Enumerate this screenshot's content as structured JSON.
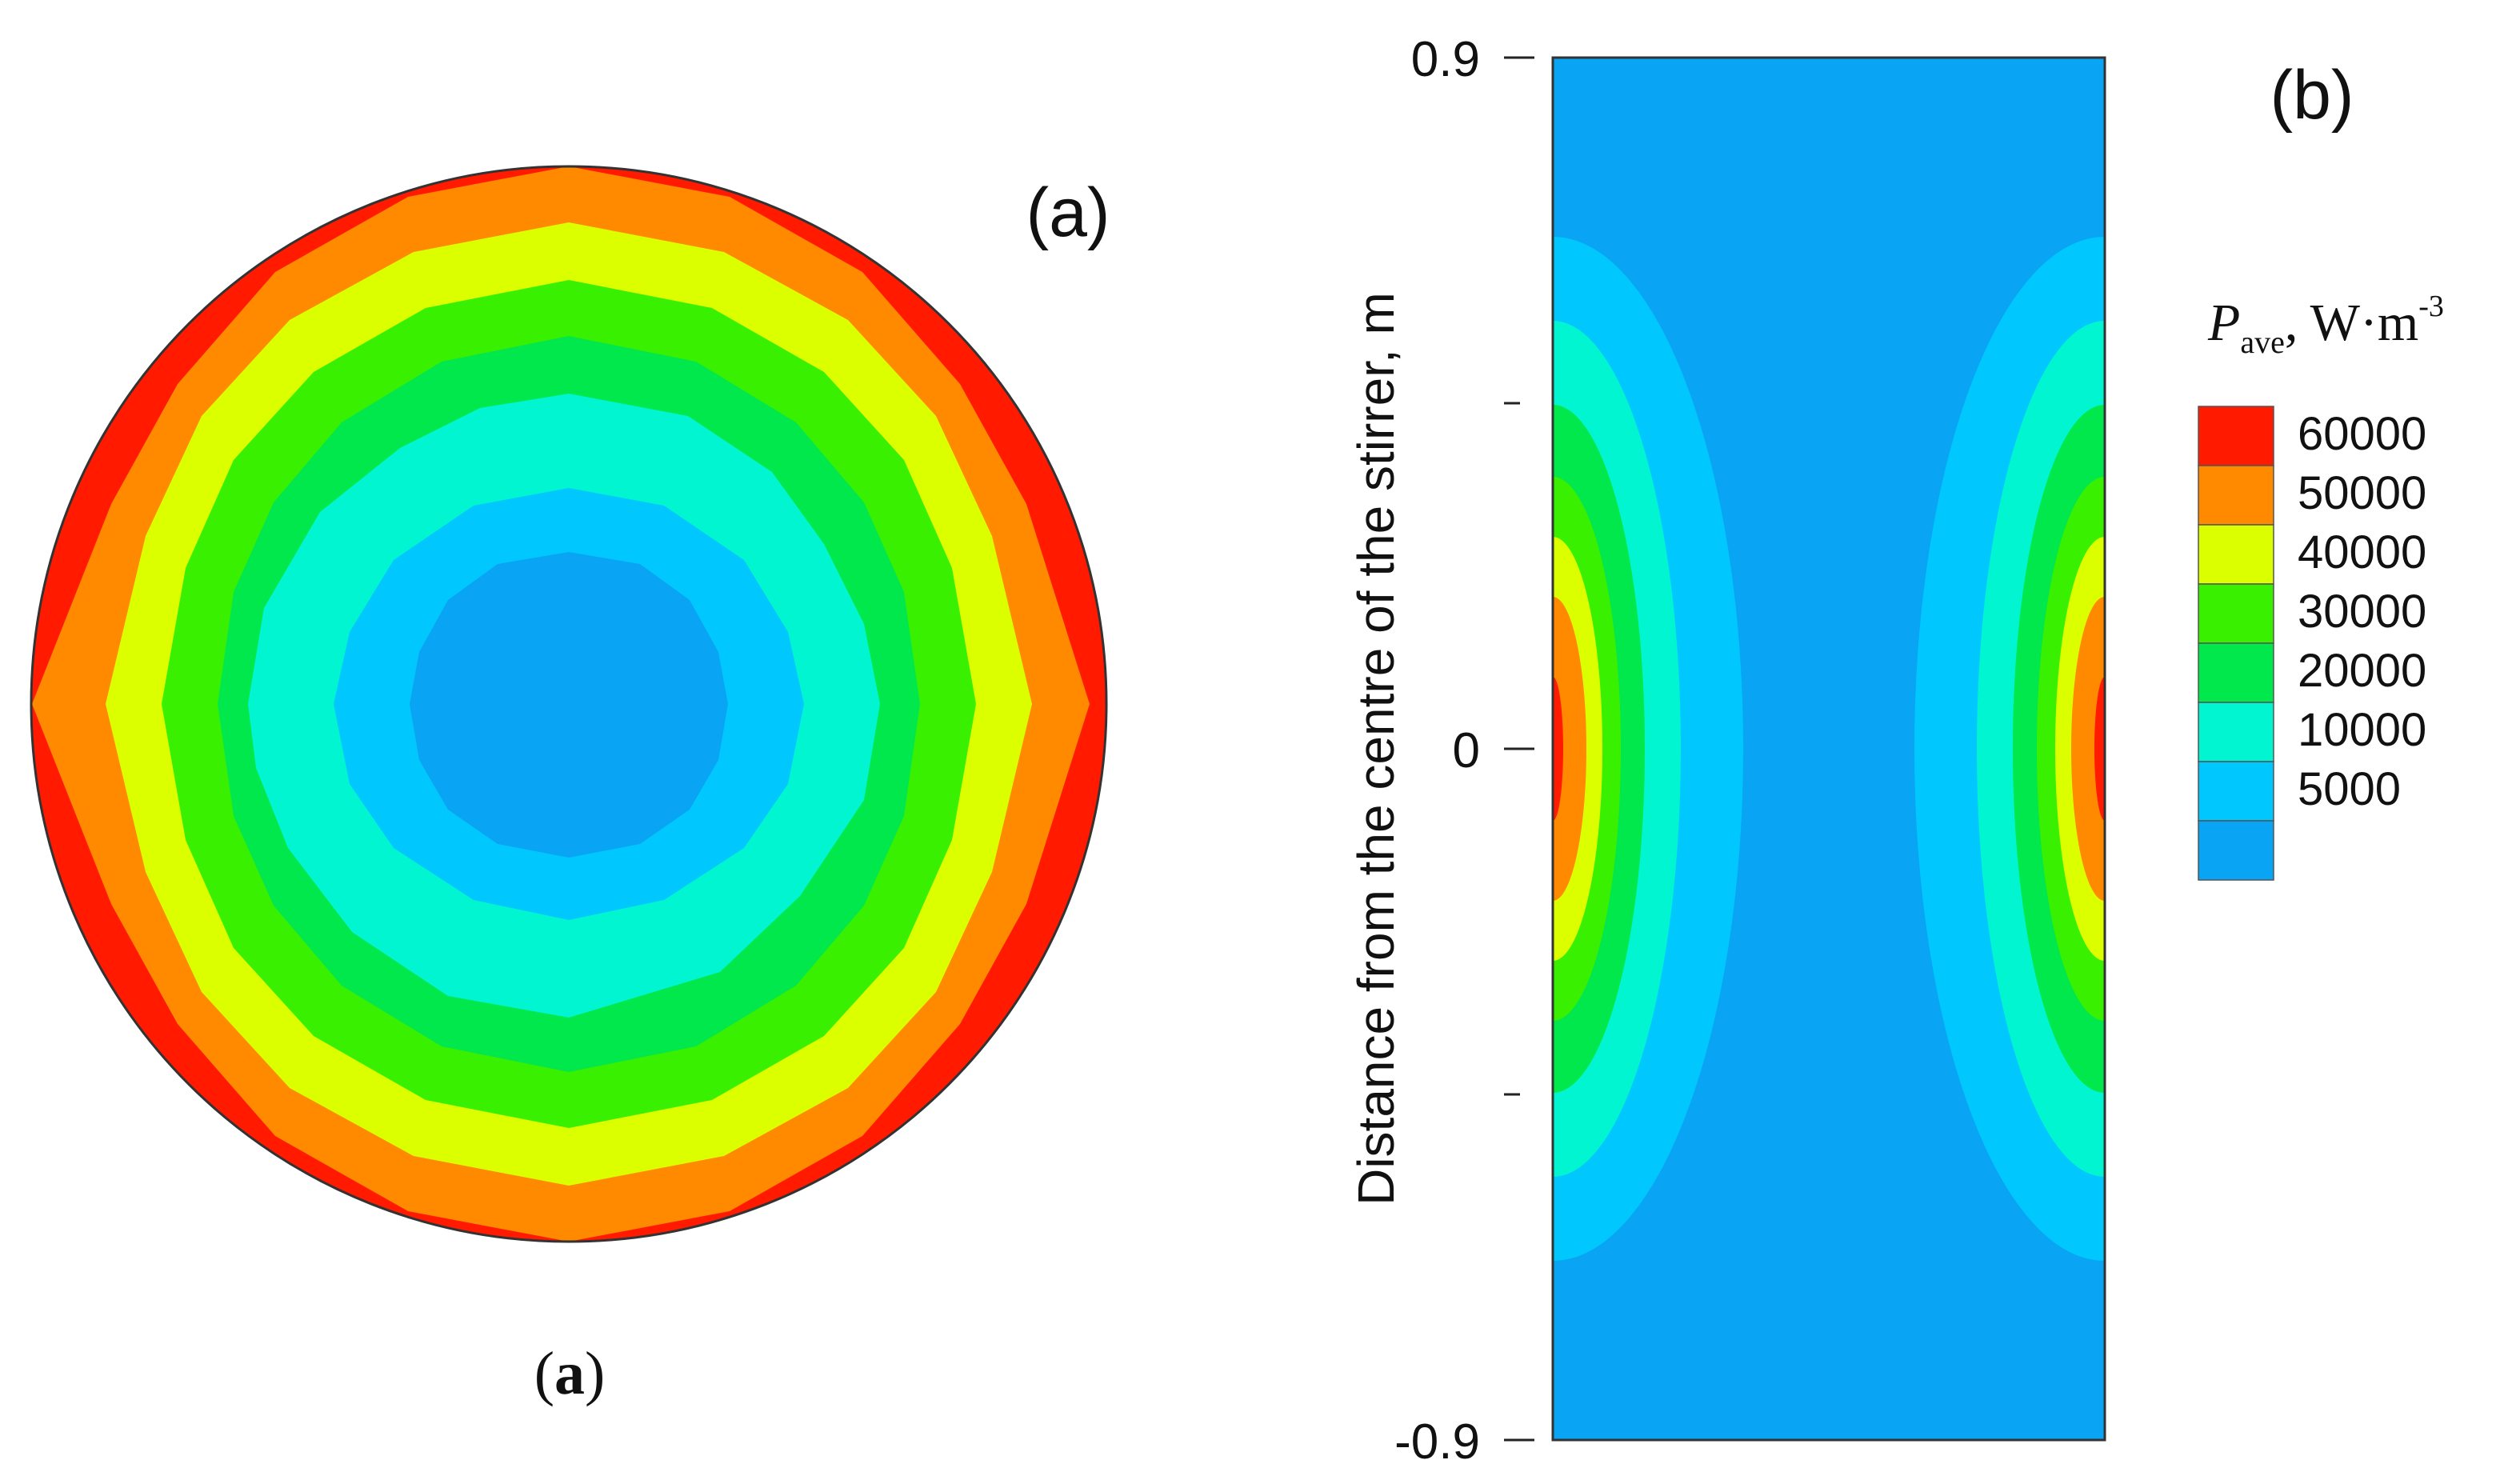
{
  "figure": {
    "panel_a_label": "(a)",
    "panel_b_label": "(b)",
    "caption_open": "(",
    "caption_letter": "a",
    "caption_close": ")"
  },
  "chart_data": [
    {
      "type": "heatmap",
      "panel": "(a)",
      "description_of_field": "radially symmetric contours, lowest at centre rising to edge",
      "contour_levels_from_centre": [
        5000,
        10000,
        20000,
        30000,
        40000,
        50000,
        60000
      ],
      "colors": {
        "5000": "#0aa4f4",
        "10000": "#00c8ff",
        "20000": "#00f5d0",
        "30000": "#00e84c",
        "40000": "#39f000",
        "50000": "#dcff00",
        "60000": "#ff8a00",
        "max": "#ff1a00"
      }
    },
    {
      "type": "heatmap",
      "panel": "(b)",
      "ylabel": "Distance from the centre of the stirrer, m",
      "yticks": [
        "0.9",
        "0",
        "-0.9"
      ],
      "ylim": [
        -0.9,
        0.9
      ],
      "legend": {
        "title_symbol": "P",
        "title_subscript": "ave",
        "title_units": ", W·m",
        "title_exponent": "-3",
        "entries": [
          {
            "label": "60000",
            "color": "#ff1a00"
          },
          {
            "label": "50000",
            "color": "#ff8a00"
          },
          {
            "label": "40000",
            "color": "#dcff00"
          },
          {
            "label": "30000",
            "color": "#39f000"
          },
          {
            "label": "20000",
            "color": "#00e84c"
          },
          {
            "label": "10000",
            "color": "#00f5d0"
          },
          {
            "label": "5000",
            "color": "#00c8ff"
          },
          {
            "label": "",
            "color": "#0aa4f4"
          }
        ]
      }
    }
  ]
}
